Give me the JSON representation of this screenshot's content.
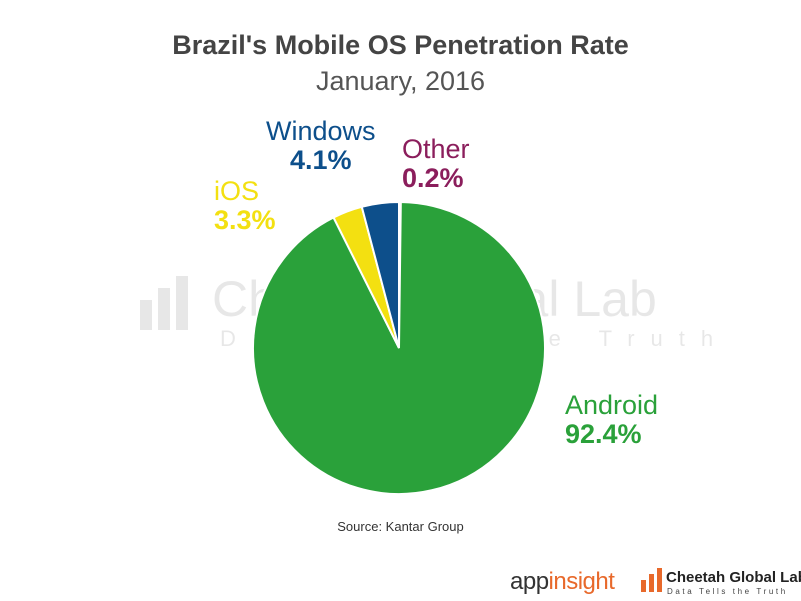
{
  "chart_data": {
    "type": "pie",
    "title": "Brazil's Mobile OS Penetration Rate",
    "subtitle": "January, 2016",
    "slices": [
      {
        "name": "Other",
        "value": 0.2,
        "label": "0.2%",
        "color": "#8b1e5c"
      },
      {
        "name": "Android",
        "value": 92.4,
        "label": "92.4%",
        "color": "#2aa13a"
      },
      {
        "name": "iOS",
        "value": 3.3,
        "label": "3.3%",
        "color": "#f3e011"
      },
      {
        "name": "Windows",
        "value": 4.1,
        "label": "4.1%",
        "color": "#0d4f8b"
      }
    ],
    "slice_border_color": "#ffffff"
  },
  "source": "Source: Kantar Group",
  "watermark": {
    "name": "Cheetah Global Lab",
    "tagline": "Data Tells the Truth"
  },
  "footer": {
    "appinsight_app": "app",
    "appinsight_insight": "insight",
    "cheetah_name": "Cheetah Global Lab",
    "cheetah_tagline": "Data Tells the Truth",
    "appinsight_accent": "#e8692b"
  }
}
